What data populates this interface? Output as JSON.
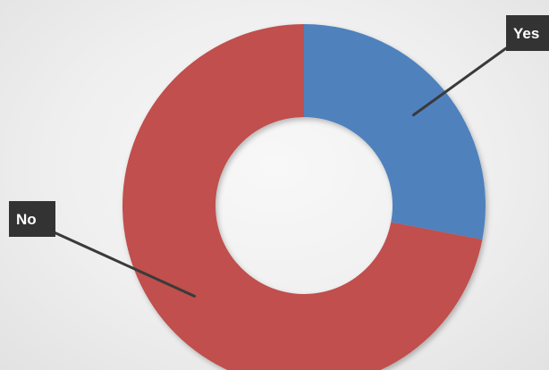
{
  "chart_data": {
    "type": "pie",
    "variant": "doughnut",
    "categories": [
      "Yes",
      "No"
    ],
    "values": [
      28,
      72
    ],
    "colors": [
      "#4f81bd",
      "#c0504d"
    ],
    "labels_style": "callout",
    "title": "",
    "legend": "none"
  }
}
